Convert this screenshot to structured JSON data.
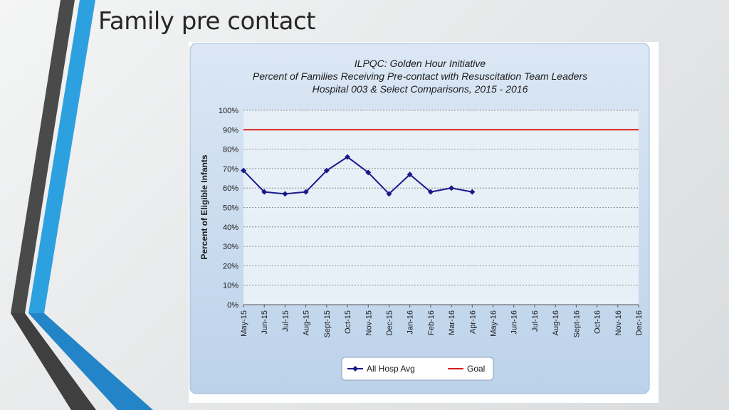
{
  "slide": {
    "title": "Family pre contact"
  },
  "colors": {
    "series": "#1a1a8c",
    "goal": "#d71d1d",
    "plot_bg": "#e8f0f7",
    "panel_bg": "#c9dcef"
  },
  "chart_data": {
    "type": "line",
    "title_lines": [
      "ILPQC: Golden Hour Initiative",
      "Percent of Families Receiving Pre-contact with Resuscitation Team Leaders",
      "Hospital 003 & Select Comparisons, 2015 - 2016"
    ],
    "ylabel": "Percent of Eligible Infants",
    "xlabel": "",
    "ylim": [
      0,
      100
    ],
    "y_ticks": [
      "0%",
      "10%",
      "20%",
      "30%",
      "40%",
      "50%",
      "60%",
      "70%",
      "80%",
      "90%",
      "100%"
    ],
    "categories": [
      "May-15",
      "Jun-15",
      "Jul-15",
      "Aug-15",
      "Sept-15",
      "Oct-15",
      "Nov-15",
      "Dec-15",
      "Jan-16",
      "Feb-16",
      "Mar-16",
      "Apr-16",
      "May-16",
      "Jun-16",
      "Jul-16",
      "Aug-16",
      "Sept-16",
      "Oct-16",
      "Nov-16",
      "Dec-16"
    ],
    "series": [
      {
        "name": "All Hosp Avg",
        "color": "#1a1a8c",
        "marker": "diamond",
        "values": [
          69,
          58,
          57,
          58,
          69,
          76,
          68,
          57,
          67,
          58,
          60,
          58,
          null,
          null,
          null,
          null,
          null,
          null,
          null,
          null
        ]
      },
      {
        "name": "Goal",
        "color": "#d71d1d",
        "marker": "none",
        "constant": 90
      }
    ],
    "grid": true,
    "legend_position": "bottom"
  }
}
